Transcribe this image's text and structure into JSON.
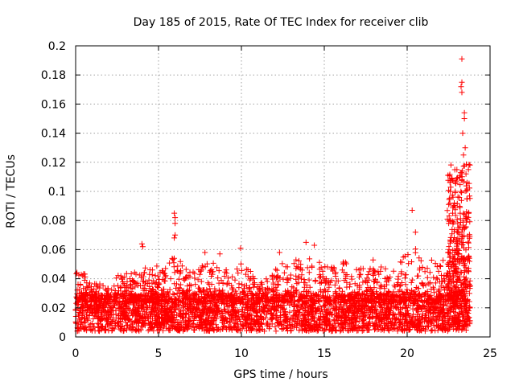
{
  "chart_data": {
    "type": "scatter",
    "title": "Day 185 of 2015, Rate Of TEC Index for receiver clib",
    "xlabel": "GPS time / hours",
    "ylabel": "ROTI / TECUs",
    "xlim": [
      0,
      25
    ],
    "ylim": [
      0,
      0.2
    ],
    "xticks": [
      0,
      5,
      10,
      15,
      20,
      25
    ],
    "xtick_labels": [
      "0",
      "5",
      "10",
      "15",
      "20",
      "25"
    ],
    "yticks": [
      0,
      0.02,
      0.04,
      0.06,
      0.08,
      0.1,
      0.12,
      0.14,
      0.16,
      0.18,
      0.2
    ],
    "ytick_labels": [
      "0",
      "0.02",
      "0.04",
      "0.06",
      "0.08",
      "0.1",
      "0.12",
      "0.14",
      "0.16",
      "0.18",
      "0.2"
    ],
    "grid": true,
    "marker": "+",
    "color": "#ff0000",
    "series": [
      {
        "name": "ROTI",
        "notable_points": [
          {
            "x": 4.0,
            "y": 0.064
          },
          {
            "x": 4.05,
            "y": 0.062
          },
          {
            "x": 5.95,
            "y": 0.085
          },
          {
            "x": 6.0,
            "y": 0.082
          },
          {
            "x": 6.0,
            "y": 0.078
          },
          {
            "x": 6.0,
            "y": 0.07
          },
          {
            "x": 5.95,
            "y": 0.068
          },
          {
            "x": 20.3,
            "y": 0.087
          },
          {
            "x": 23.3,
            "y": 0.191
          },
          {
            "x": 23.3,
            "y": 0.175
          },
          {
            "x": 23.25,
            "y": 0.172
          },
          {
            "x": 23.3,
            "y": 0.168
          },
          {
            "x": 23.45,
            "y": 0.154
          },
          {
            "x": 23.45,
            "y": 0.15
          },
          {
            "x": 23.35,
            "y": 0.14
          },
          {
            "x": 23.5,
            "y": 0.13
          },
          {
            "x": 23.4,
            "y": 0.125
          },
          {
            "x": 23.0,
            "y": 0.115
          },
          {
            "x": 23.55,
            "y": 0.112
          },
          {
            "x": 23.3,
            "y": 0.108
          },
          {
            "x": 22.9,
            "y": 0.1
          },
          {
            "x": 23.6,
            "y": 0.095
          },
          {
            "x": 22.8,
            "y": 0.09
          },
          {
            "x": 23.2,
            "y": 0.085
          },
          {
            "x": 22.6,
            "y": 0.08
          },
          {
            "x": 23.1,
            "y": 0.075
          },
          {
            "x": 20.5,
            "y": 0.072
          },
          {
            "x": 9.95,
            "y": 0.061
          },
          {
            "x": 13.9,
            "y": 0.065
          },
          {
            "x": 14.4,
            "y": 0.063
          },
          {
            "x": 12.3,
            "y": 0.058
          },
          {
            "x": 7.8,
            "y": 0.058
          },
          {
            "x": 8.7,
            "y": 0.057
          }
        ],
        "envelope": [
          [
            0,
            0.046
          ],
          [
            0.5,
            0.044
          ],
          [
            1,
            0.036
          ],
          [
            1.5,
            0.038
          ],
          [
            2,
            0.034
          ],
          [
            2.5,
            0.042
          ],
          [
            3,
            0.046
          ],
          [
            3.5,
            0.044
          ],
          [
            4,
            0.048
          ],
          [
            4.5,
            0.05
          ],
          [
            5,
            0.05
          ],
          [
            5.5,
            0.048
          ],
          [
            6,
            0.058
          ],
          [
            6.5,
            0.05
          ],
          [
            7,
            0.046
          ],
          [
            7.5,
            0.05
          ],
          [
            8,
            0.052
          ],
          [
            8.5,
            0.05
          ],
          [
            9,
            0.048
          ],
          [
            9.5,
            0.046
          ],
          [
            10,
            0.056
          ],
          [
            10.5,
            0.046
          ],
          [
            11,
            0.038
          ],
          [
            11.5,
            0.04
          ],
          [
            12,
            0.05
          ],
          [
            12.5,
            0.054
          ],
          [
            13,
            0.05
          ],
          [
            13.5,
            0.056
          ],
          [
            14,
            0.058
          ],
          [
            14.5,
            0.054
          ],
          [
            15,
            0.05
          ],
          [
            15.5,
            0.048
          ],
          [
            16,
            0.054
          ],
          [
            16.5,
            0.05
          ],
          [
            17,
            0.046
          ],
          [
            17.5,
            0.05
          ],
          [
            18,
            0.056
          ],
          [
            18.5,
            0.05
          ],
          [
            19,
            0.046
          ],
          [
            19.5,
            0.05
          ],
          [
            20,
            0.06
          ],
          [
            20.5,
            0.062
          ],
          [
            21,
            0.05
          ],
          [
            21.5,
            0.056
          ],
          [
            22,
            0.05
          ],
          [
            22.5,
            0.064
          ],
          [
            23,
            0.07
          ],
          [
            23.5,
            0.09
          ],
          [
            23.8,
            0.05
          ]
        ],
        "baseline_range": [
          0.004,
          0.03
        ]
      }
    ]
  }
}
